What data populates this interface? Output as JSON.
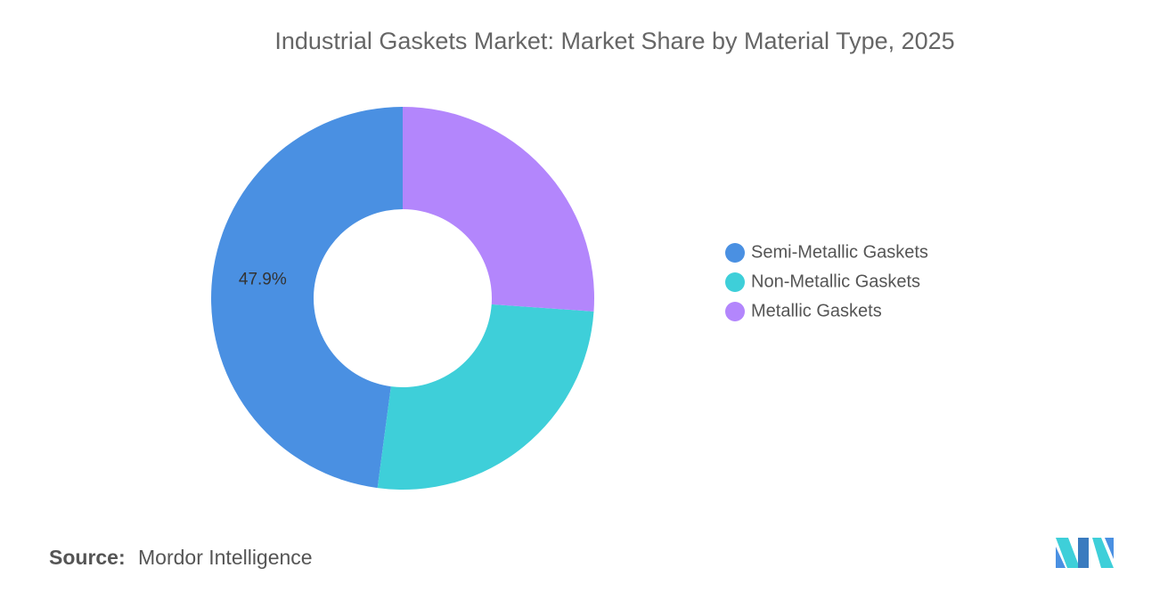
{
  "chart_data": {
    "type": "donut",
    "title": "Industrial Gaskets Market: Market Share by Material Type, 2025",
    "categories": [
      "Semi-Metallic Gaskets",
      "Non-Metallic Gaskets",
      "Metallic Gaskets"
    ],
    "values": [
      47.9,
      26.0,
      26.1
    ],
    "value_labels": [
      "47.9%",
      null,
      null
    ],
    "colors": [
      "#4a90e2",
      "#3ecfd9",
      "#b386fc"
    ],
    "legend": "right"
  },
  "source_label": "Source:",
  "source": "Mordor Intelligence"
}
